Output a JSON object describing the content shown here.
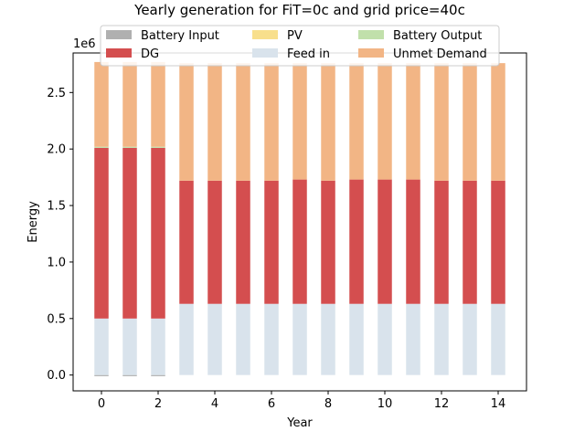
{
  "chart_data": {
    "type": "bar",
    "stacked": true,
    "title": "Yearly generation for FiT=0c and grid price=40c",
    "xlabel": "Year",
    "ylabel": "Energy",
    "y_multiplier_label": "1e6",
    "xlim": [
      -1,
      15
    ],
    "ylim": [
      -0.14,
      2.85
    ],
    "y_scale_factor": 1000000,
    "x_ticks": [
      0,
      2,
      4,
      6,
      8,
      10,
      12,
      14
    ],
    "y_ticks": [
      0.0,
      0.5,
      1.0,
      1.5,
      2.0,
      2.5
    ],
    "y_tick_labels": [
      "0.0",
      "0.5",
      "1.0",
      "1.5",
      "2.0",
      "2.5"
    ],
    "x_tick_labels": [
      "0",
      "2",
      "4",
      "6",
      "8",
      "10",
      "12",
      "14"
    ],
    "grid": false,
    "legend_position": "top-center",
    "legend_columns": 3,
    "categories": [
      0,
      1,
      2,
      3,
      4,
      5,
      6,
      7,
      8,
      9,
      10,
      11,
      12,
      13,
      14
    ],
    "series": [
      {
        "name": "Battery Input",
        "color": "#b0b0b0",
        "negative": true,
        "values": [
          -0.01,
          -0.01,
          -0.01,
          0,
          0,
          0,
          0,
          0,
          0,
          0,
          0,
          0,
          0,
          0,
          0
        ]
      },
      {
        "name": "Feed in",
        "color": "#d9e3ec",
        "values": [
          0.5,
          0.5,
          0.5,
          0.63,
          0.63,
          0.63,
          0.63,
          0.63,
          0.63,
          0.63,
          0.63,
          0.63,
          0.63,
          0.63,
          0.63
        ]
      },
      {
        "name": "DG",
        "color": "#d44e4f",
        "values": [
          1.51,
          1.51,
          1.51,
          1.09,
          1.09,
          1.09,
          1.09,
          1.1,
          1.09,
          1.1,
          1.1,
          1.1,
          1.09,
          1.09,
          1.09
        ]
      },
      {
        "name": "PV",
        "color": "#f8df8c",
        "values": [
          0,
          0,
          0,
          0,
          0,
          0,
          0,
          0,
          0,
          0,
          0,
          0,
          0,
          0,
          0
        ]
      },
      {
        "name": "Battery Output",
        "color": "#c1e0ab",
        "values": [
          0.01,
          0.01,
          0.01,
          0,
          0,
          0,
          0,
          0,
          0,
          0,
          0,
          0,
          0,
          0,
          0
        ]
      },
      {
        "name": "Unmet Demand",
        "color": "#f2b585",
        "values": [
          0.75,
          0.75,
          0.75,
          1.04,
          1.04,
          1.04,
          1.04,
          1.03,
          1.04,
          1.03,
          1.03,
          1.03,
          1.04,
          1.04,
          1.04
        ]
      }
    ],
    "legend_order": [
      "Battery Input",
      "PV",
      "Battery Output",
      "DG",
      "Feed in",
      "Unmet Demand"
    ]
  }
}
